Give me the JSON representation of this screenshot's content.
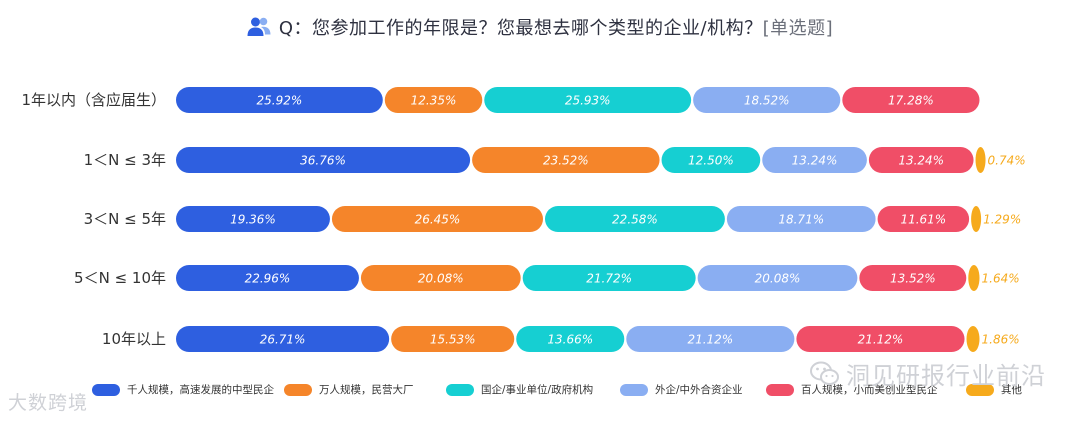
{
  "title": {
    "question": "Q：您参加工作的年限是？您最想去哪个类型的企业/机构？",
    "tag": "[单选题]"
  },
  "colors": {
    "blue": "#2e5fe0",
    "orange": "#f5852a",
    "teal": "#16cfd2",
    "lightblue": "#8aaef2",
    "red": "#f04e67",
    "yellow": "#f6aa1c"
  },
  "chart_data": {
    "type": "bar",
    "orientation": "horizontal",
    "stacked": true,
    "categories": [
      "1年以内（含应届生）",
      "1＜N ≤ 3年",
      "3＜N ≤ 5年",
      "5＜N ≤ 10年",
      "10年以上"
    ],
    "series": [
      {
        "name": "千人规模，高速发展的中型民企",
        "color": "#2e5fe0",
        "values": [
          25.92,
          36.76,
          19.36,
          22.96,
          26.71
        ],
        "labels": [
          "25.92%",
          "36.76%",
          "19.36%",
          "22.96%",
          "26.71%"
        ]
      },
      {
        "name": "万人规模，民营大厂",
        "color": "#f5852a",
        "values": [
          12.35,
          23.52,
          26.45,
          20.08,
          15.53
        ],
        "labels": [
          "12.35%",
          "23.52%",
          "26.45%",
          "20.08%",
          "15.53%"
        ]
      },
      {
        "name": "国企/事业单位/政府机构",
        "color": "#16cfd2",
        "values": [
          25.93,
          12.5,
          22.58,
          21.72,
          13.66
        ],
        "labels": [
          "25.93%",
          "12.50%",
          "22.58%",
          "21.72%",
          "13.66%"
        ]
      },
      {
        "name": "外企/中外合资企业",
        "color": "#8aaef2",
        "values": [
          18.52,
          13.24,
          18.71,
          20.08,
          21.12
        ],
        "labels": [
          "18.52%",
          "13.24%",
          "18.71%",
          "20.08%",
          "21.12%"
        ]
      },
      {
        "name": "百人规模，小而美创业型民企",
        "color": "#f04e67",
        "values": [
          17.28,
          13.24,
          11.61,
          13.52,
          21.12
        ],
        "labels": [
          "17.28%",
          "13.24%",
          "11.61%",
          "13.52%",
          "21.12%"
        ]
      },
      {
        "name": "其他",
        "color": "#f6aa1c",
        "values": [
          0,
          0.74,
          1.29,
          1.64,
          1.86
        ],
        "labels": [
          "",
          "0.74%",
          "1.29%",
          "1.64%",
          "1.86%"
        ]
      }
    ],
    "legend_position": "bottom",
    "grid": false
  },
  "watermarks": {
    "left": "大数跨境",
    "right": "洞见研报行业前沿"
  }
}
